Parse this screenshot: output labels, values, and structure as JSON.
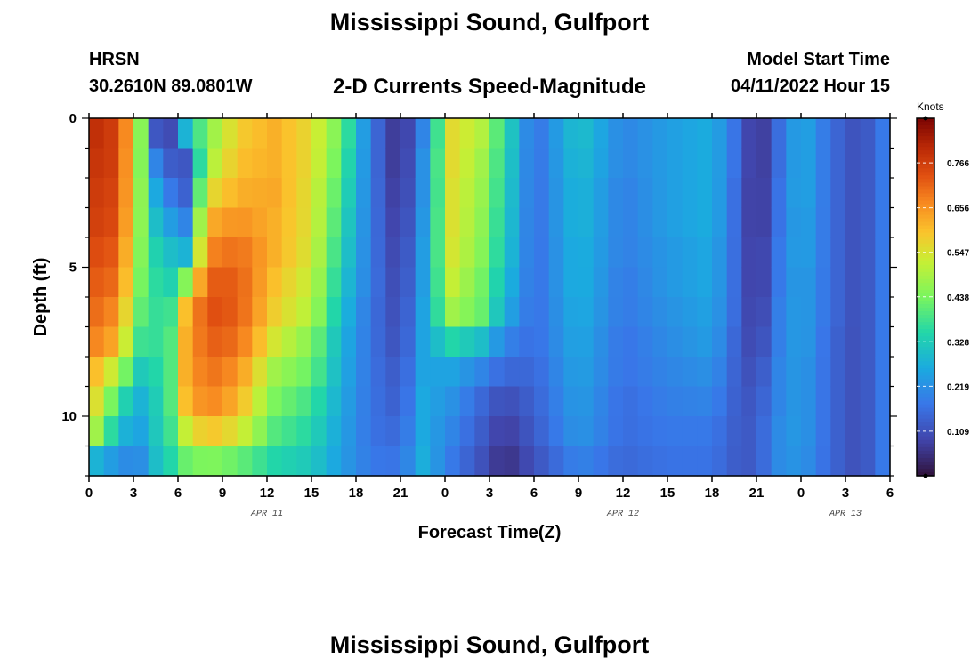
{
  "header": {
    "title": "Mississippi Sound, Gulfport",
    "station": "HRSN",
    "coords": "30.2610N  89.0801W",
    "subtitle": "2-D Currents Speed-Magnitude",
    "model_start_label": "Model Start Time",
    "model_start_value": "04/11/2022 Hour 15",
    "repeat_title": "Mississippi Sound, Gulfport"
  },
  "chart_data": {
    "type": "heatmap",
    "title": "2-D Currents Speed-Magnitude",
    "xlabel": "Forecast Time(Z)",
    "ylabel": "Depth (ft)",
    "colorbar_label": "Knots",
    "x_range_hours": [
      0,
      54
    ],
    "depth_range_ft": [
      0,
      12
    ],
    "value_range": [
      0.0,
      0.875
    ],
    "x_tick_hours": [
      0,
      3,
      6,
      9,
      12,
      15,
      18,
      21,
      24,
      27,
      30,
      33,
      36,
      39,
      42,
      45,
      48,
      51,
      54
    ],
    "x_tick_labels": [
      "0",
      "3",
      "6",
      "9",
      "12",
      "15",
      "18",
      "21",
      "0",
      "3",
      "6",
      "9",
      "12",
      "15",
      "18",
      "21",
      "0",
      "3",
      "6"
    ],
    "date_labels": [
      {
        "text": "APR 11",
        "hour": 12
      },
      {
        "text": "APR 12",
        "hour": 36
      },
      {
        "text": "APR 13",
        "hour": 51
      }
    ],
    "y_ticks": [
      0,
      5,
      10
    ],
    "y_tick_labels": [
      "0",
      "5",
      "10"
    ],
    "colorbar_ticks": [
      0.766,
      0.656,
      0.547,
      0.438,
      0.328,
      0.219,
      0.109
    ],
    "colorbar_tick_labels": [
      "0.766",
      "0.656",
      "0.547",
      "0.438",
      "0.328",
      "0.219",
      "0.109"
    ],
    "depth_levels_ft": [
      0.5,
      1.5,
      2.5,
      3.5,
      4.5,
      5.5,
      6.5,
      7.5,
      8.5,
      9.5,
      10.5,
      11.5
    ],
    "time_keyframes": [
      {
        "h": 0.5,
        "v": [
          0.79,
          0.78,
          0.77,
          0.76,
          0.74,
          0.72,
          0.7,
          0.67,
          0.6,
          0.55,
          0.48,
          0.28
        ]
      },
      {
        "h": 2,
        "v": [
          0.76,
          0.76,
          0.75,
          0.74,
          0.72,
          0.7,
          0.66,
          0.62,
          0.5,
          0.38,
          0.3,
          0.22
        ]
      },
      {
        "h": 3.3,
        "v": [
          0.52,
          0.5,
          0.5,
          0.49,
          0.47,
          0.45,
          0.42,
          0.38,
          0.32,
          0.27,
          0.24,
          0.2
        ]
      },
      {
        "h": 4.5,
        "v": [
          0.12,
          0.2,
          0.26,
          0.3,
          0.34,
          0.36,
          0.37,
          0.37,
          0.35,
          0.33,
          0.32,
          0.3
        ]
      },
      {
        "h": 5.5,
        "v": [
          0.1,
          0.13,
          0.18,
          0.24,
          0.3,
          0.34,
          0.38,
          0.4,
          0.4,
          0.4,
          0.38,
          0.35
        ]
      },
      {
        "h": 6.5,
        "v": [
          0.28,
          0.12,
          0.14,
          0.2,
          0.28,
          0.45,
          0.6,
          0.62,
          0.62,
          0.6,
          0.52,
          0.42
        ]
      },
      {
        "h": 8,
        "v": [
          0.45,
          0.48,
          0.55,
          0.62,
          0.67,
          0.72,
          0.74,
          0.72,
          0.7,
          0.68,
          0.6,
          0.45
        ]
      },
      {
        "h": 10,
        "v": [
          0.58,
          0.6,
          0.62,
          0.66,
          0.7,
          0.72,
          0.72,
          0.7,
          0.66,
          0.62,
          0.55,
          0.42
        ]
      },
      {
        "h": 12.5,
        "v": [
          0.62,
          0.62,
          0.63,
          0.62,
          0.62,
          0.6,
          0.58,
          0.54,
          0.48,
          0.44,
          0.4,
          0.35
        ]
      },
      {
        "h": 15,
        "v": [
          0.56,
          0.56,
          0.55,
          0.55,
          0.54,
          0.52,
          0.5,
          0.45,
          0.42,
          0.38,
          0.35,
          0.32
        ]
      },
      {
        "h": 17,
        "v": [
          0.42,
          0.4,
          0.38,
          0.36,
          0.34,
          0.32,
          0.3,
          0.28,
          0.27,
          0.26,
          0.25,
          0.24
        ]
      },
      {
        "h": 19,
        "v": [
          0.18,
          0.18,
          0.18,
          0.18,
          0.18,
          0.18,
          0.17,
          0.17,
          0.17,
          0.17,
          0.17,
          0.18
        ]
      },
      {
        "h": 21,
        "v": [
          0.04,
          0.04,
          0.05,
          0.06,
          0.07,
          0.08,
          0.09,
          0.1,
          0.12,
          0.13,
          0.15,
          0.17
        ]
      },
      {
        "h": 22.5,
        "v": [
          0.2,
          0.22,
          0.22,
          0.23,
          0.24,
          0.24,
          0.25,
          0.25,
          0.25,
          0.26,
          0.26,
          0.27
        ]
      },
      {
        "h": 24.5,
        "v": [
          0.56,
          0.56,
          0.55,
          0.55,
          0.54,
          0.52,
          0.48,
          0.35,
          0.25,
          0.22,
          0.2,
          0.18
        ]
      },
      {
        "h": 26.5,
        "v": [
          0.5,
          0.48,
          0.47,
          0.46,
          0.45,
          0.43,
          0.42,
          0.3,
          0.2,
          0.15,
          0.13,
          0.11
        ]
      },
      {
        "h": 28,
        "v": [
          0.36,
          0.35,
          0.34,
          0.33,
          0.32,
          0.3,
          0.27,
          0.2,
          0.15,
          0.1,
          0.07,
          0.05
        ]
      },
      {
        "h": 30,
        "v": [
          0.16,
          0.16,
          0.16,
          0.16,
          0.16,
          0.16,
          0.16,
          0.16,
          0.15,
          0.14,
          0.13,
          0.11
        ]
      },
      {
        "h": 33,
        "v": [
          0.31,
          0.3,
          0.29,
          0.29,
          0.28,
          0.28,
          0.27,
          0.26,
          0.25,
          0.24,
          0.23,
          0.2
        ]
      },
      {
        "h": 36,
        "v": [
          0.2,
          0.2,
          0.19,
          0.19,
          0.19,
          0.18,
          0.18,
          0.17,
          0.17,
          0.16,
          0.16,
          0.15
        ]
      },
      {
        "h": 39,
        "v": [
          0.24,
          0.24,
          0.24,
          0.24,
          0.23,
          0.23,
          0.22,
          0.21,
          0.2,
          0.19,
          0.18,
          0.17
        ]
      },
      {
        "h": 42,
        "v": [
          0.27,
          0.27,
          0.27,
          0.27,
          0.26,
          0.26,
          0.25,
          0.24,
          0.22,
          0.2,
          0.18,
          0.17
        ]
      },
      {
        "h": 44,
        "v": [
          0.14,
          0.14,
          0.13,
          0.13,
          0.13,
          0.13,
          0.13,
          0.12,
          0.12,
          0.12,
          0.12,
          0.12
        ]
      },
      {
        "h": 45,
        "v": [
          0.04,
          0.04,
          0.04,
          0.04,
          0.05,
          0.05,
          0.06,
          0.08,
          0.1,
          0.12,
          0.13,
          0.13
        ]
      },
      {
        "h": 46.5,
        "v": [
          0.16,
          0.16,
          0.17,
          0.17,
          0.18,
          0.18,
          0.19,
          0.19,
          0.2,
          0.2,
          0.21,
          0.21
        ]
      },
      {
        "h": 48,
        "v": [
          0.27,
          0.27,
          0.27,
          0.26,
          0.26,
          0.25,
          0.25,
          0.25,
          0.24,
          0.24,
          0.24,
          0.23
        ]
      },
      {
        "h": 50,
        "v": [
          0.16,
          0.16,
          0.16,
          0.16,
          0.16,
          0.16,
          0.16,
          0.15,
          0.15,
          0.15,
          0.15,
          0.15
        ]
      },
      {
        "h": 52,
        "v": [
          0.1,
          0.1,
          0.1,
          0.1,
          0.1,
          0.1,
          0.1,
          0.1,
          0.1,
          0.1,
          0.1,
          0.1
        ]
      },
      {
        "h": 53.5,
        "v": [
          0.18,
          0.18,
          0.18,
          0.18,
          0.18,
          0.18,
          0.18,
          0.18,
          0.18,
          0.18,
          0.18,
          0.18
        ]
      }
    ]
  }
}
